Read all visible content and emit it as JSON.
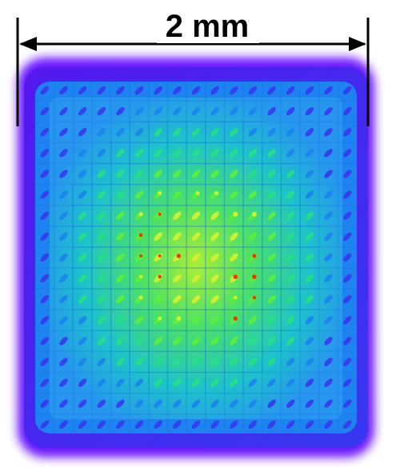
{
  "scale_bar": {
    "label": "2 mm",
    "color": "#000000"
  },
  "image": {
    "description_free": true,
    "colormap": [
      "#6a00ff",
      "#3c3cff",
      "#1e8cff",
      "#14d2e6",
      "#28f08c",
      "#64ff3c",
      "#e6ff32",
      "#ff3c00"
    ],
    "grid_rows": 17,
    "grid_cols": 17,
    "background": "#ffffff"
  }
}
